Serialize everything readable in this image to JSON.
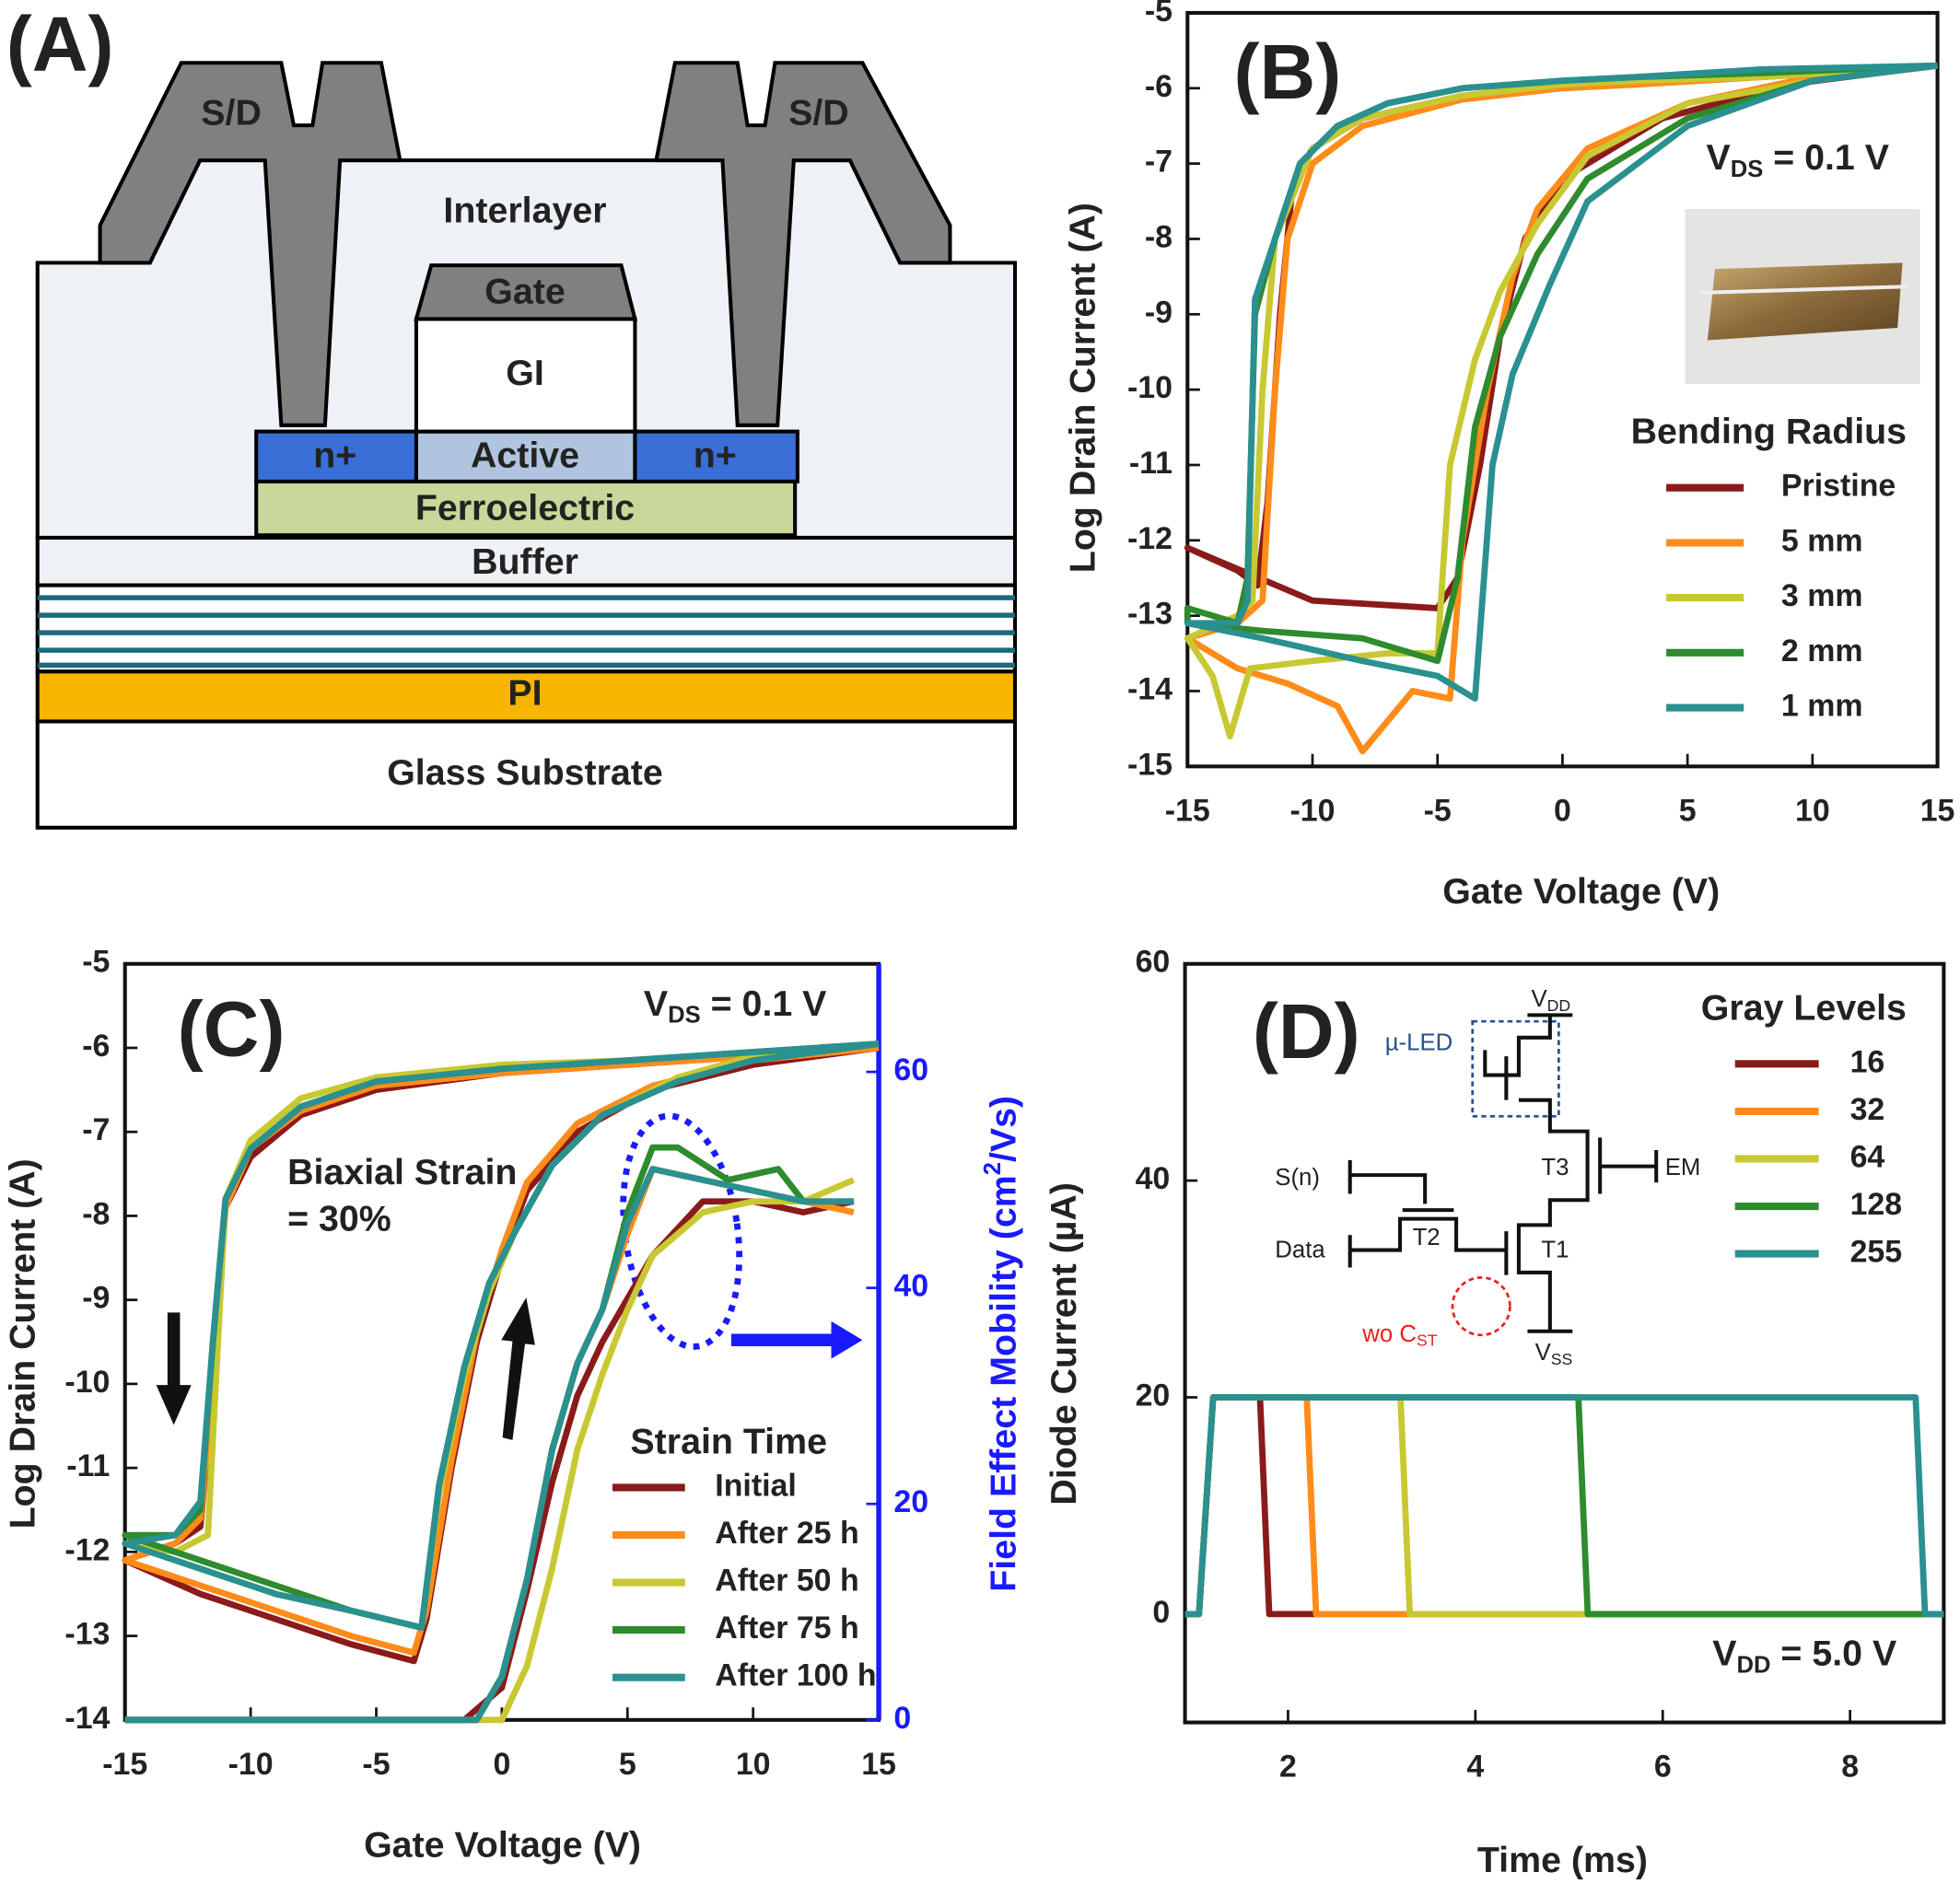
{
  "diagram": {
    "label": "(A)",
    "texts": [
      "S/D",
      "S/D",
      "Interlayer",
      "Gate",
      "GI",
      "n+",
      "Active",
      "n+",
      "Ferroelectric",
      "Buffer",
      "PI",
      "Glass Substrate"
    ]
  },
  "chart_data": [
    {
      "type": "line",
      "panel_label": "(B)",
      "xlabel": "Gate Voltage (V)",
      "ylabel": "Log Drain Current (A)",
      "xlim": [
        -15,
        15
      ],
      "ylim": [
        -15,
        -5
      ],
      "xticks": [
        -15,
        -10,
        -5,
        0,
        5,
        10,
        15
      ],
      "yticks": [
        -5,
        -6,
        -7,
        -8,
        -9,
        -10,
        -11,
        -12,
        -13,
        -14,
        -15
      ],
      "annotations": [
        [
          "V",
          "DS",
          " = 0.1 V"
        ]
      ],
      "legend_title": "Bending Radius",
      "legend": "center right",
      "series": [
        {
          "name": "Pristine",
          "color": "#8b1a1a",
          "x": [
            15,
            8,
            3,
            0,
            -4,
            -8,
            -10,
            -10.8,
            -11.3,
            -11.8,
            -12.2,
            -13,
            -15,
            -15,
            -10,
            -5,
            -4.2,
            -3.3,
            -2.5,
            -1.5,
            0,
            4,
            9,
            15
          ],
          "values": [
            -5.7,
            -5.85,
            -5.9,
            -5.95,
            -6.1,
            -6.4,
            -6.8,
            -7.3,
            -9,
            -11.5,
            -12.6,
            -12.4,
            -12.1,
            -12.1,
            -12.8,
            -12.9,
            -12.5,
            -11,
            -9.3,
            -8,
            -7.2,
            -6.4,
            -5.95,
            -5.7
          ]
        },
        {
          "name": "5 mm",
          "color": "#ff8c1a",
          "x": [
            15,
            8,
            3,
            0,
            -4,
            -8,
            -10,
            -11,
            -11.5,
            -12,
            -13,
            -15,
            -15,
            -13,
            -11,
            -9,
            -8,
            -6,
            -4.5,
            -4,
            -3,
            -2,
            -1,
            1,
            5,
            10,
            15
          ],
          "values": [
            -5.7,
            -5.85,
            -5.95,
            -6.0,
            -6.15,
            -6.5,
            -7,
            -8,
            -10,
            -12.8,
            -13.1,
            -13.3,
            -13.3,
            -13.7,
            -13.9,
            -14.2,
            -14.8,
            -14,
            -14.1,
            -12,
            -10,
            -8.5,
            -7.6,
            -6.8,
            -6.2,
            -5.85,
            -5.7
          ]
        },
        {
          "name": "3 mm",
          "color": "#c8c832",
          "x": [
            15,
            8,
            3,
            0,
            -4,
            -8,
            -10,
            -11.5,
            -12,
            -12.4,
            -13,
            -15,
            -15,
            -14,
            -13.3,
            -12.5,
            -10,
            -7,
            -5,
            -4.5,
            -3.5,
            -2.5,
            -1,
            1,
            5,
            10,
            15
          ],
          "values": [
            -5.7,
            -5.85,
            -5.9,
            -5.95,
            -6.1,
            -6.4,
            -6.8,
            -8,
            -10,
            -12.8,
            -13,
            -13.3,
            -13.3,
            -13.8,
            -14.6,
            -13.7,
            -13.6,
            -13.5,
            -13.5,
            -11,
            -9.6,
            -8.7,
            -7.8,
            -6.9,
            -6.2,
            -5.9,
            -5.7
          ]
        },
        {
          "name": "2 mm",
          "color": "#2e8b2e",
          "x": [
            15,
            8,
            3,
            0,
            -4,
            -7,
            -9,
            -10.5,
            -11.5,
            -12.3,
            -12.6,
            -13,
            -15,
            -15,
            -12,
            -8,
            -5,
            -4.2,
            -3.5,
            -2.5,
            -1,
            1,
            5,
            10,
            15
          ],
          "values": [
            -5.7,
            -5.8,
            -5.85,
            -5.9,
            -6.0,
            -6.2,
            -6.5,
            -7.0,
            -8,
            -9,
            -12.5,
            -13.1,
            -12.9,
            -13.1,
            -13.2,
            -13.3,
            -13.6,
            -12.5,
            -10.5,
            -9.3,
            -8.2,
            -7.2,
            -6.4,
            -5.9,
            -5.7
          ]
        },
        {
          "name": "1 mm",
          "color": "#2a9090",
          "x": [
            15,
            8,
            3,
            0,
            -4,
            -7,
            -9,
            -10.5,
            -11.5,
            -12.3,
            -12.6,
            -13,
            -15,
            -15,
            -12,
            -8,
            -5,
            -3.5,
            -2.8,
            -2,
            -0.5,
            1,
            5,
            10,
            15
          ],
          "values": [
            -5.7,
            -5.75,
            -5.85,
            -5.9,
            -6.0,
            -6.2,
            -6.5,
            -7.0,
            -8,
            -8.8,
            -12.8,
            -13.1,
            -13.1,
            -13.1,
            -13.3,
            -13.6,
            -13.8,
            -14.1,
            -11,
            -9.8,
            -8.6,
            -7.5,
            -6.5,
            -5.9,
            -5.7
          ]
        }
      ]
    },
    {
      "type": "line",
      "panel_label": "(C)",
      "xlabel": "Gate Voltage (V)",
      "ylabel": "Log Drain Current (A)",
      "y2label": [
        "Field Effect Mobility (cm",
        "2",
        "/Vs)"
      ],
      "xlim": [
        -15,
        15
      ],
      "ylim": [
        -14,
        -5
      ],
      "y2lim": [
        0,
        70
      ],
      "xticks": [
        -15,
        -10,
        -5,
        0,
        5,
        10,
        15
      ],
      "yticks": [
        -5,
        -6,
        -7,
        -8,
        -9,
        -10,
        -11,
        -12,
        -13,
        -14
      ],
      "y2ticks": [
        0,
        20,
        40,
        60
      ],
      "annotations": [
        [
          "V",
          "DS",
          " = 0.1 V"
        ],
        [
          "Biaxial Strain"
        ],
        [
          "= 30%"
        ]
      ],
      "legend_title": "Strain Time",
      "legend": "lower right",
      "series": [
        {
          "name": "Initial",
          "color": "#8b1a1a",
          "x": [
            15,
            10,
            5,
            0,
            -5,
            -8,
            -10,
            -11,
            -11.5,
            -12,
            -13,
            -15,
            -15,
            -12,
            -9,
            -6,
            -3.5,
            -3,
            -2,
            -1,
            0,
            1,
            3,
            6,
            10,
            15
          ],
          "values": [
            -6.0,
            -6.1,
            -6.2,
            -6.3,
            -6.5,
            -6.8,
            -7.3,
            -7.9,
            -10,
            -11.7,
            -11.9,
            -12.1,
            -12.1,
            -12.5,
            -12.8,
            -13.1,
            -13.3,
            -12.8,
            -11,
            -9.5,
            -8.5,
            -7.7,
            -7,
            -6.5,
            -6.2,
            -6.0
          ]
        },
        {
          "name": "After 25 h",
          "color": "#ff8c1a",
          "x": [
            15,
            10,
            5,
            0,
            -5,
            -8,
            -10,
            -11,
            -11.5,
            -12,
            -13,
            -15,
            -15,
            -12,
            -9,
            -6,
            -3.5,
            -3,
            -2,
            -1,
            0,
            1,
            3,
            6,
            10,
            15
          ],
          "values": [
            -6.0,
            -6.1,
            -6.2,
            -6.3,
            -6.45,
            -6.75,
            -7.2,
            -7.9,
            -10,
            -11.6,
            -11.9,
            -12.1,
            -12.1,
            -12.4,
            -12.7,
            -13.0,
            -13.2,
            -12.7,
            -10.9,
            -9.4,
            -8.4,
            -7.6,
            -6.9,
            -6.45,
            -6.15,
            -6.0
          ]
        },
        {
          "name": "After 50 h",
          "color": "#c8c832",
          "x": [
            15,
            10,
            5,
            0,
            -5,
            -8,
            -10,
            -11,
            -11.3,
            -11.7,
            -13,
            -15,
            -15,
            -12,
            -9,
            -6,
            -3.2,
            -2.5,
            -1.5,
            -0.5,
            0.5,
            2,
            4,
            7,
            10,
            15
          ],
          "values": [
            -5.95,
            -6.05,
            -6.15,
            -6.2,
            -6.35,
            -6.6,
            -7.1,
            -7.8,
            -9.5,
            -11.8,
            -12.0,
            -11.9,
            -11.9,
            -12.2,
            -12.5,
            -12.7,
            -12.9,
            -11.3,
            -9.9,
            -8.9,
            -8.2,
            -7.4,
            -6.8,
            -6.35,
            -6.1,
            -5.95
          ]
        },
        {
          "name": "After 75 h",
          "color": "#2e8b2e",
          "x": [
            15,
            10,
            5,
            0,
            -5,
            -8,
            -10,
            -11,
            -11.5,
            -12,
            -13,
            -15,
            -15,
            -12,
            -9,
            -6,
            -3.2,
            -2.5,
            -1.5,
            -0.5,
            0.5,
            2,
            4,
            7,
            10,
            15
          ],
          "values": [
            -5.95,
            -6.05,
            -6.15,
            -6.25,
            -6.4,
            -6.7,
            -7.2,
            -7.8,
            -9.5,
            -11.5,
            -11.8,
            -11.8,
            -11.8,
            -12.1,
            -12.4,
            -12.7,
            -12.9,
            -11.2,
            -9.8,
            -8.8,
            -8.2,
            -7.4,
            -6.8,
            -6.4,
            -6.15,
            -5.95
          ]
        },
        {
          "name": "After 100 h",
          "color": "#2a9090",
          "x": [
            15,
            10,
            5,
            0,
            -5,
            -8,
            -10,
            -11,
            -11.5,
            -12,
            -13,
            -15,
            -15,
            -12,
            -9,
            -6,
            -3.2,
            -2.5,
            -1.5,
            -0.5,
            0.5,
            2,
            4,
            7,
            10,
            15
          ],
          "values": [
            -5.95,
            -6.05,
            -6.15,
            -6.25,
            -6.4,
            -6.7,
            -7.2,
            -7.8,
            -9.5,
            -11.4,
            -11.8,
            -11.9,
            -11.9,
            -12.2,
            -12.5,
            -12.7,
            -12.9,
            -11.2,
            -9.8,
            -8.8,
            -8.2,
            -7.4,
            -6.8,
            -6.4,
            -6.15,
            -5.95
          ]
        },
        {
          "color": "#8b1a1a",
          "axis": "y2",
          "x": [
            -15,
            -1.5,
            0,
            1,
            2,
            3,
            4,
            5,
            6,
            8,
            10,
            12,
            14
          ],
          "values": [
            0,
            0,
            3,
            12,
            22,
            30,
            35,
            39,
            43,
            48,
            48,
            47,
            48
          ]
        },
        {
          "color": "#ff8c1a",
          "axis": "y2",
          "x": [
            -15,
            -1,
            0,
            1,
            2,
            3,
            4,
            5,
            6,
            8,
            10,
            12,
            14
          ],
          "values": [
            0,
            0,
            4,
            13,
            25,
            33,
            38,
            45,
            51,
            50,
            49,
            48,
            47
          ]
        },
        {
          "color": "#c8c832",
          "axis": "y2",
          "x": [
            -15,
            0,
            1,
            2,
            3,
            4,
            5,
            6,
            8,
            10,
            12,
            14
          ],
          "values": [
            0,
            0,
            5,
            14,
            25,
            32,
            38,
            43,
            47,
            48,
            48,
            50
          ]
        },
        {
          "color": "#2e8b2e",
          "axis": "y2",
          "x": [
            -15,
            -1,
            0,
            1,
            2,
            3,
            4,
            5,
            6,
            7,
            9,
            11,
            12,
            14
          ],
          "values": [
            0,
            0,
            4,
            13,
            25,
            33,
            38,
            47,
            53,
            53,
            50,
            51,
            48,
            48
          ]
        },
        {
          "color": "#2a9090",
          "axis": "y2",
          "x": [
            -15,
            -1,
            0,
            1,
            2,
            3,
            4,
            5,
            6,
            8,
            10,
            12,
            14
          ],
          "values": [
            0,
            0,
            4,
            13,
            25,
            33,
            38,
            46,
            51,
            50,
            49,
            48,
            48
          ]
        }
      ]
    },
    {
      "type": "line",
      "panel_label": "(D)",
      "xlabel": "Time (ms)",
      "ylabel": "Diode Current (µA)",
      "xlim": [
        0.9,
        9.0
      ],
      "ylim": [
        -10,
        60
      ],
      "xticks": [
        2,
        4,
        6,
        8
      ],
      "yticks": [
        0,
        20,
        40,
        60
      ],
      "annotations": [
        [
          "V",
          "DD",
          " = 5.0 V"
        ]
      ],
      "legend_title": "Gray Levels",
      "legend": "upper right",
      "circuit": [
        [
          "V",
          "DD"
        ],
        [
          "µ-LED"
        ],
        [
          "S(n)"
        ],
        [
          "Data"
        ],
        [
          "T2"
        ],
        [
          "T3"
        ],
        [
          "EM"
        ],
        [
          "T1"
        ],
        [
          "wo C",
          "ST"
        ],
        [
          "V",
          "SS"
        ]
      ],
      "series": [
        {
          "name": "16",
          "color": "#8b1a1a",
          "x": [
            0.9,
            1.05,
            1.2,
            1.7,
            1.8,
            9.0
          ],
          "values": [
            0,
            0,
            20,
            20,
            0,
            0
          ]
        },
        {
          "name": "32",
          "color": "#ff8c1a",
          "x": [
            0.9,
            1.05,
            1.2,
            2.2,
            2.3,
            9.0
          ],
          "values": [
            0,
            0,
            20,
            20,
            0,
            0
          ]
        },
        {
          "name": "64",
          "color": "#c8c832",
          "x": [
            0.9,
            1.05,
            1.2,
            3.2,
            3.3,
            9.0
          ],
          "values": [
            0,
            0,
            20,
            20,
            0,
            0
          ]
        },
        {
          "name": "128",
          "color": "#2e8b2e",
          "x": [
            0.9,
            1.05,
            1.2,
            5.1,
            5.2,
            9.0
          ],
          "values": [
            0,
            0,
            20,
            20,
            0,
            0
          ]
        },
        {
          "name": "255",
          "color": "#2a9090",
          "x": [
            0.9,
            1.05,
            1.2,
            8.7,
            8.8,
            9.0
          ],
          "values": [
            0,
            0,
            20,
            20,
            0,
            0
          ]
        }
      ]
    }
  ]
}
